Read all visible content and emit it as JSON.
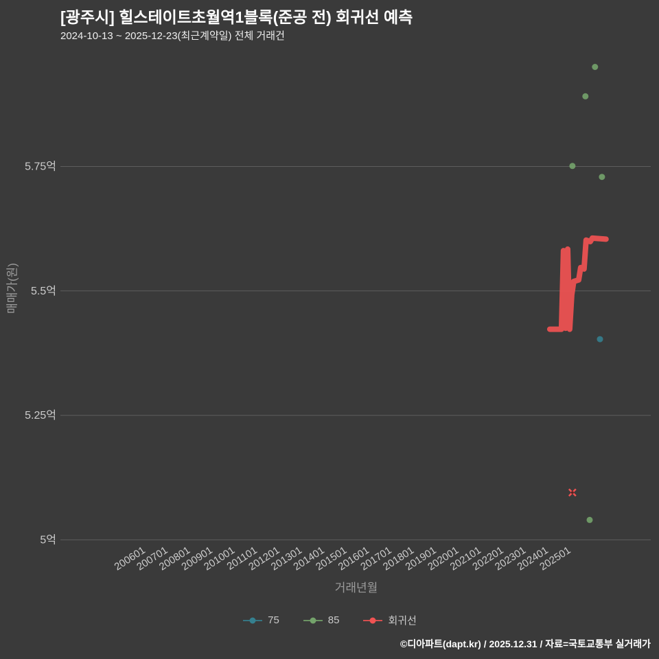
{
  "page": {
    "background": "#3a3a3a"
  },
  "header": {
    "title": "[광주시] 힐스테이트초월역1블록(준공 전) 회귀선 예측",
    "subtitle": "2024-10-13 ~ 2025-12-23(최근계약일) 전체 거래건"
  },
  "footer": {
    "credit": "©디아파트(dapt.kr) / 2025.12.31 / 자료=국토교통부 실거래가"
  },
  "chart_data": {
    "type": "scatter",
    "title": "[광주시] 힐스테이트초월역1블록(준공 전) 회귀선 예측",
    "subtitle": "2024-10-13 ~ 2025-12-23(최근계약일) 전체 거래건",
    "xlabel": "거래년월",
    "ylabel": "매매가(원)",
    "grid": true,
    "legend_position": "bottom",
    "x_range": [
      2002.24,
      2028.55
    ],
    "y_range": [
      4.995,
      5.981
    ],
    "x_ticks": [
      {
        "value": 2006,
        "label": "200601"
      },
      {
        "value": 2007,
        "label": "200701"
      },
      {
        "value": 2008,
        "label": "200801"
      },
      {
        "value": 2009,
        "label": "200901"
      },
      {
        "value": 2010,
        "label": "201001"
      },
      {
        "value": 2011,
        "label": "201101"
      },
      {
        "value": 2012,
        "label": "201201"
      },
      {
        "value": 2013,
        "label": "201301"
      },
      {
        "value": 2014,
        "label": "201401"
      },
      {
        "value": 2015,
        "label": "201501"
      },
      {
        "value": 2016,
        "label": "201601"
      },
      {
        "value": 2017,
        "label": "201701"
      },
      {
        "value": 2018,
        "label": "201801"
      },
      {
        "value": 2019,
        "label": "201901"
      },
      {
        "value": 2020,
        "label": "202001"
      },
      {
        "value": 2021,
        "label": "202101"
      },
      {
        "value": 2022,
        "label": "202201"
      },
      {
        "value": 2023,
        "label": "202301"
      },
      {
        "value": 2024,
        "label": "202401"
      },
      {
        "value": 2025,
        "label": "202501"
      }
    ],
    "y_ticks": [
      {
        "value": 5.0,
        "label": "5억"
      },
      {
        "value": 5.25,
        "label": "5.25억"
      },
      {
        "value": 5.5,
        "label": "5.5억"
      },
      {
        "value": 5.75,
        "label": "5.75억"
      }
    ],
    "colors": {
      "grid": "#5e5e5e",
      "tick_label": "#cccccc",
      "axis_label": "#9c9c9c",
      "title": "#ffffff",
      "subtitle": "#eeeeee",
      "footer": "#ffffff"
    },
    "series": [
      {
        "name": "75",
        "kind": "scatter",
        "color": "#35808f",
        "points": [
          [
            2026.28,
            5.403
          ]
        ]
      },
      {
        "name": "85",
        "kind": "scatter",
        "color": "#74a36b",
        "points": [
          [
            2026.06,
            5.95
          ],
          [
            2025.63,
            5.891
          ],
          [
            2025.05,
            5.751
          ],
          [
            2026.37,
            5.729
          ],
          [
            2025.82,
            5.04
          ]
        ]
      },
      {
        "name": "회귀선",
        "kind": "line",
        "color": "#f15353",
        "line": [
          [
            2024.04,
            5.423
          ],
          [
            2024.56,
            5.423
          ],
          [
            2024.65,
            5.581
          ],
          [
            2024.75,
            5.425
          ],
          [
            2024.84,
            5.584
          ],
          [
            2024.93,
            5.423
          ],
          [
            2025.02,
            5.492
          ],
          [
            2025.11,
            5.519
          ],
          [
            2025.33,
            5.522
          ],
          [
            2025.42,
            5.547
          ],
          [
            2025.57,
            5.544
          ],
          [
            2025.66,
            5.602
          ],
          [
            2025.85,
            5.599
          ],
          [
            2025.94,
            5.606
          ],
          [
            2026.55,
            5.604
          ]
        ],
        "x_marker": [
          2025.05,
          5.095
        ]
      }
    ]
  }
}
